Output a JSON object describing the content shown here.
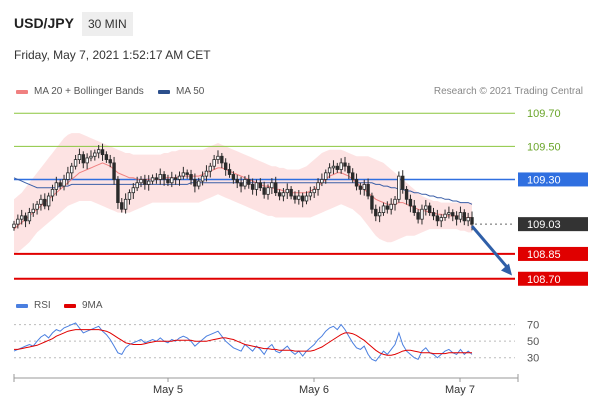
{
  "header": {
    "pair": "USD/JPY",
    "timeframe": "30 MIN",
    "datetime": "Friday, May 7, 2021 1:52:17 AM CET",
    "credit": "Research © 2021 Trading Central"
  },
  "legend": {
    "ma20": "MA 20 + Bollinger Bands",
    "ma50": "MA 50",
    "rsi": "RSI",
    "ma9": "9MA"
  },
  "colors": {
    "ma20": "#f08080",
    "bollinger_fill": "#fde0e0",
    "ma50": "#3b5fa8",
    "candle": "#2a2a2a",
    "support": "#e00000",
    "pivot": "#2f6fe0",
    "resistance": "#8cc63f",
    "rsi": "#4a7fe0",
    "rsi_ma": "#e00000",
    "arrow": "#2f5fa8"
  },
  "chart_data": [
    {
      "type": "candlestick",
      "title": "",
      "y_ticks": [
        "109.70",
        "109.50",
        "109.30",
        "109.03",
        "108.85",
        "108.70"
      ],
      "x_ticks": [
        "May 5",
        "May 6",
        "May 7"
      ],
      "ylim": [
        108.62,
        109.78
      ],
      "levels": [
        {
          "value": 109.7,
          "label": "109.70",
          "kind": "resistance"
        },
        {
          "value": 109.5,
          "label": "109.50",
          "kind": "resistance"
        },
        {
          "value": 109.3,
          "label": "109.30",
          "kind": "pivot"
        },
        {
          "value": 109.03,
          "label": "109.03",
          "kind": "last"
        },
        {
          "value": 108.85,
          "label": "108.85",
          "kind": "support"
        },
        {
          "value": 108.7,
          "label": "108.70",
          "kind": "support"
        }
      ],
      "x": [
        0,
        1,
        2,
        3,
        4,
        5,
        6,
        7,
        8,
        9,
        10,
        11,
        12,
        13,
        14,
        15,
        16,
        17,
        18,
        19,
        20,
        21,
        22,
        23,
        24,
        25,
        26,
        27,
        28,
        29,
        30,
        31,
        32,
        33,
        34,
        35,
        36,
        37,
        38,
        39,
        40,
        41,
        42,
        43,
        44,
        45,
        46,
        47,
        48,
        49,
        50,
        51,
        52,
        53,
        54,
        55,
        56,
        57,
        58,
        59,
        60,
        61,
        62,
        63,
        64,
        65,
        66,
        67,
        68,
        69,
        70,
        71,
        72,
        73,
        74,
        75,
        76,
        77,
        78,
        79,
        80,
        81,
        82,
        83,
        84,
        85,
        86,
        87,
        88,
        89,
        90,
        91,
        92,
        93,
        94,
        95,
        96,
        97,
        98,
        99,
        100,
        101,
        102,
        103,
        104,
        105,
        106,
        107,
        108,
        109,
        110,
        111,
        112,
        113,
        114,
        115,
        116,
        117,
        118,
        119
      ],
      "series": [
        {
          "role": "close",
          "values": [
            109.03,
            109.06,
            109.08,
            109.05,
            109.1,
            109.12,
            109.15,
            109.18,
            109.14,
            109.2,
            109.24,
            109.28,
            109.26,
            109.3,
            109.34,
            109.38,
            109.42,
            109.45,
            109.4,
            109.43,
            109.44,
            109.46,
            109.48,
            109.45,
            109.42,
            109.4,
            109.3,
            109.16,
            109.12,
            109.18,
            109.22,
            109.25,
            109.28,
            109.3,
            109.27,
            109.29,
            109.31,
            109.3,
            109.33,
            109.3,
            109.28,
            109.31,
            109.3,
            109.32,
            109.34,
            109.33,
            109.3,
            109.26,
            109.29,
            109.32,
            109.35,
            109.38,
            109.42,
            109.44,
            109.4,
            109.36,
            109.33,
            109.3,
            109.28,
            109.26,
            109.3,
            109.27,
            109.24,
            109.28,
            109.25,
            109.21,
            109.25,
            109.28,
            109.22,
            109.2,
            109.22,
            109.24,
            109.2,
            109.18,
            109.2,
            109.17,
            109.2,
            109.22,
            109.24,
            109.28,
            109.3,
            109.34,
            109.37,
            109.38,
            109.36,
            109.4,
            109.38,
            109.34,
            109.3,
            109.26,
            109.24,
            109.27,
            109.2,
            109.12,
            109.08,
            109.1,
            109.14,
            109.12,
            109.15,
            109.18,
            109.32,
            109.24,
            109.18,
            109.14,
            109.1,
            109.06,
            109.12,
            109.14,
            109.1,
            109.08,
            109.05,
            109.07,
            109.09,
            109.1,
            109.08,
            109.06,
            109.1,
            109.05,
            109.07,
            109.03
          ]
        },
        {
          "role": "ma20",
          "values": [
            109.0,
            109.02,
            109.04,
            109.06,
            109.08,
            109.1,
            109.12,
            109.14,
            109.16,
            109.18,
            109.2,
            109.22,
            109.24,
            109.26,
            109.28,
            109.3,
            109.32,
            109.34,
            109.35,
            109.36,
            109.37,
            109.38,
            109.39,
            109.4,
            109.39,
            109.38,
            109.36,
            109.34,
            109.33,
            109.32,
            109.31,
            109.31,
            109.3,
            109.3,
            109.3,
            109.3,
            109.3,
            109.3,
            109.3,
            109.31,
            109.31,
            109.31,
            109.31,
            109.32,
            109.32,
            109.32,
            109.32,
            109.32,
            109.32,
            109.33,
            109.34,
            109.35,
            109.36,
            109.37,
            109.37,
            109.36,
            109.35,
            109.34,
            109.33,
            109.32,
            109.31,
            109.3,
            109.29,
            109.28,
            109.27,
            109.26,
            109.26,
            109.25,
            109.24,
            109.24,
            109.23,
            109.23,
            109.22,
            109.22,
            109.22,
            109.22,
            109.22,
            109.23,
            109.24,
            109.26,
            109.28,
            109.3,
            109.32,
            109.33,
            109.34,
            109.34,
            109.33,
            109.32,
            109.3,
            109.28,
            109.26,
            109.24,
            109.22,
            109.2,
            109.18,
            109.17,
            109.16,
            109.15,
            109.15,
            109.15,
            109.16,
            109.16,
            109.15,
            109.14,
            109.13,
            109.12,
            109.11,
            109.11,
            109.1,
            109.1,
            109.09,
            109.09,
            109.08,
            109.08,
            109.08,
            109.08,
            109.08,
            109.07,
            109.07,
            109.07
          ]
        },
        {
          "role": "ma50",
          "values": [
            109.31,
            109.3,
            109.29,
            109.28,
            109.27,
            109.26,
            109.25,
            109.25,
            109.25,
            109.25,
            109.25,
            109.25,
            109.26,
            109.26,
            109.26,
            109.27,
            109.27,
            109.27,
            109.27,
            109.27,
            109.27,
            109.27,
            109.27,
            109.27,
            109.27,
            109.27,
            109.27,
            109.27,
            109.27,
            109.27,
            109.27,
            109.27,
            109.27,
            109.27,
            109.27,
            109.27,
            109.27,
            109.27,
            109.27,
            109.27,
            109.27,
            109.27,
            109.27,
            109.27,
            109.27,
            109.27,
            109.28,
            109.28,
            109.28,
            109.28,
            109.28,
            109.28,
            109.28,
            109.28,
            109.28,
            109.28,
            109.28,
            109.28,
            109.28,
            109.28,
            109.28,
            109.28,
            109.28,
            109.28,
            109.28,
            109.28,
            109.28,
            109.28,
            109.28,
            109.28,
            109.28,
            109.28,
            109.28,
            109.28,
            109.28,
            109.28,
            109.28,
            109.28,
            109.28,
            109.28,
            109.28,
            109.28,
            109.28,
            109.28,
            109.28,
            109.28,
            109.28,
            109.28,
            109.28,
            109.28,
            109.28,
            109.28,
            109.28,
            109.28,
            109.27,
            109.27,
            109.26,
            109.26,
            109.25,
            109.25,
            109.24,
            109.24,
            109.23,
            109.23,
            109.22,
            109.22,
            109.21,
            109.21,
            109.2,
            109.2,
            109.19,
            109.19,
            109.18,
            109.18,
            109.17,
            109.17,
            109.16,
            109.16,
            109.16,
            109.15
          ]
        },
        {
          "role": "bb_upper",
          "values": [
            109.18,
            109.2,
            109.22,
            109.25,
            109.28,
            109.31,
            109.34,
            109.37,
            109.4,
            109.43,
            109.46,
            109.49,
            109.52,
            109.55,
            109.57,
            109.58,
            109.58,
            109.58,
            109.57,
            109.56,
            109.55,
            109.54,
            109.53,
            109.52,
            109.51,
            109.5,
            109.49,
            109.48,
            109.47,
            109.46,
            109.46,
            109.45,
            109.45,
            109.45,
            109.45,
            109.45,
            109.45,
            109.45,
            109.45,
            109.46,
            109.46,
            109.47,
            109.47,
            109.48,
            109.48,
            109.48,
            109.48,
            109.48,
            109.48,
            109.48,
            109.49,
            109.5,
            109.51,
            109.52,
            109.51,
            109.5,
            109.49,
            109.48,
            109.47,
            109.46,
            109.45,
            109.44,
            109.43,
            109.42,
            109.41,
            109.4,
            109.39,
            109.38,
            109.38,
            109.37,
            109.37,
            109.36,
            109.36,
            109.36,
            109.36,
            109.37,
            109.38,
            109.4,
            109.42,
            109.44,
            109.46,
            109.47,
            109.48,
            109.48,
            109.48,
            109.48,
            109.47,
            109.46,
            109.45,
            109.44,
            109.44,
            109.44,
            109.44,
            109.43,
            109.42,
            109.41,
            109.4,
            109.38,
            109.36,
            109.34,
            109.32,
            109.3,
            109.28,
            109.26,
            109.24,
            109.22,
            109.2,
            109.19,
            109.18,
            109.17,
            109.17,
            109.16,
            109.16,
            109.16,
            109.16,
            109.16,
            109.16,
            109.16,
            109.16,
            109.16
          ]
        },
        {
          "role": "bb_lower",
          "values": [
            108.85,
            108.86,
            108.88,
            108.9,
            108.92,
            108.95,
            108.98,
            109.0,
            109.02,
            109.04,
            109.06,
            109.08,
            109.1,
            109.12,
            109.14,
            109.15,
            109.16,
            109.17,
            109.17,
            109.17,
            109.17,
            109.16,
            109.15,
            109.14,
            109.13,
            109.12,
            109.11,
            109.1,
            109.1,
            109.1,
            109.1,
            109.11,
            109.12,
            109.13,
            109.14,
            109.15,
            109.16,
            109.16,
            109.16,
            109.16,
            109.16,
            109.16,
            109.16,
            109.16,
            109.16,
            109.16,
            109.16,
            109.16,
            109.16,
            109.17,
            109.18,
            109.19,
            109.2,
            109.21,
            109.2,
            109.19,
            109.18,
            109.17,
            109.16,
            109.15,
            109.14,
            109.13,
            109.12,
            109.11,
            109.1,
            109.09,
            109.08,
            109.08,
            109.07,
            109.07,
            109.07,
            109.07,
            109.07,
            109.07,
            109.07,
            109.07,
            109.07,
            109.07,
            109.08,
            109.09,
            109.1,
            109.11,
            109.12,
            109.13,
            109.14,
            109.15,
            109.14,
            109.13,
            109.12,
            109.1,
            109.08,
            109.05,
            109.02,
            108.99,
            108.96,
            108.94,
            108.93,
            108.92,
            108.92,
            108.93,
            108.94,
            108.95,
            108.96,
            108.96,
            108.96,
            108.97,
            108.98,
            108.99,
            109.0,
            109.0,
            109.0,
            109.0,
            109.0,
            109.0,
            109.0,
            109.0,
            108.99,
            108.99,
            108.98,
            108.98
          ]
        }
      ],
      "projection": {
        "from": 109.03,
        "to": 108.72,
        "label": "target"
      }
    },
    {
      "type": "line",
      "title": "",
      "y_ticks": [
        "70",
        "50",
        "30"
      ],
      "ylim": [
        20,
        78
      ],
      "series": [
        {
          "name": "RSI",
          "values": [
            38,
            40,
            42,
            44,
            46,
            44,
            50,
            55,
            58,
            54,
            60,
            64,
            62,
            66,
            68,
            70,
            72,
            66,
            60,
            62,
            64,
            66,
            68,
            62,
            58,
            52,
            44,
            36,
            34,
            42,
            46,
            48,
            50,
            52,
            48,
            50,
            52,
            50,
            54,
            50,
            48,
            52,
            50,
            54,
            56,
            54,
            50,
            44,
            48,
            52,
            56,
            58,
            60,
            62,
            56,
            50,
            46,
            42,
            40,
            38,
            46,
            42,
            38,
            44,
            40,
            34,
            42,
            46,
            38,
            36,
            40,
            44,
            38,
            34,
            38,
            32,
            38,
            42,
            46,
            52,
            56,
            62,
            66,
            68,
            64,
            70,
            64,
            56,
            48,
            42,
            40,
            44,
            34,
            28,
            26,
            32,
            38,
            34,
            40,
            46,
            60,
            46,
            38,
            34,
            30,
            28,
            38,
            42,
            36,
            34,
            30,
            34,
            38,
            40,
            36,
            34,
            40,
            34,
            38,
            34
          ]
        },
        {
          "name": "9MA",
          "values": [
            40,
            40,
            41,
            42,
            43,
            44,
            45,
            47,
            49,
            51,
            53,
            56,
            58,
            60,
            62,
            63,
            64,
            64,
            64,
            64,
            64,
            64,
            64,
            63,
            62,
            60,
            57,
            54,
            51,
            48,
            47,
            46,
            46,
            46,
            47,
            48,
            49,
            50,
            50,
            50,
            50,
            50,
            51,
            51,
            51,
            51,
            51,
            50,
            50,
            50,
            50,
            51,
            52,
            53,
            54,
            54,
            53,
            52,
            50,
            48,
            46,
            45,
            44,
            43,
            42,
            41,
            41,
            40,
            40,
            39,
            39,
            39,
            39,
            38,
            38,
            38,
            38,
            38,
            39,
            41,
            43,
            46,
            49,
            52,
            55,
            58,
            60,
            60,
            59,
            57,
            54,
            51,
            47,
            43,
            39,
            36,
            34,
            33,
            33,
            34,
            36,
            38,
            39,
            39,
            38,
            37,
            36,
            36,
            36,
            35,
            35,
            35,
            35,
            36,
            36,
            36,
            36,
            36,
            36,
            36
          ]
        }
      ]
    }
  ]
}
